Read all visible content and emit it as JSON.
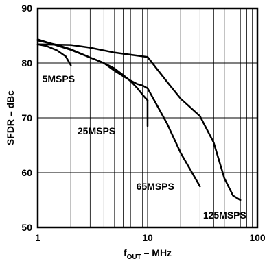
{
  "chart_data": {
    "type": "line",
    "title": "",
    "xlabel": {
      "main": "f",
      "sub": "OUT",
      "rest": " – MHz"
    },
    "ylabel": "SFDR – dBc",
    "x_scale": "log",
    "xlim": [
      1,
      100
    ],
    "ylim": [
      50,
      90
    ],
    "grid": true,
    "x_tick_labels": [
      {
        "value": 1,
        "label": "1"
      },
      {
        "value": 10,
        "label": "10"
      },
      {
        "value": 100,
        "label": "100"
      }
    ],
    "y_tick_labels": [
      {
        "value": 90,
        "label": "90"
      },
      {
        "value": 80,
        "label": "80"
      },
      {
        "value": 70,
        "label": "70"
      },
      {
        "value": 60,
        "label": "60"
      },
      {
        "value": 50,
        "label": "50"
      }
    ],
    "series": [
      {
        "name": "5MSPS",
        "x": [
          1,
          1.2,
          1.5,
          1.8,
          2
        ],
        "y": [
          83.4,
          83.1,
          82.3,
          81.2,
          79.6
        ]
      },
      {
        "name": "25MSPS",
        "x": [
          1,
          1.5,
          2,
          3,
          4,
          5,
          6,
          7,
          8,
          9,
          10
        ],
        "y": [
          84.1,
          83.3,
          82.5,
          81.0,
          80.0,
          79.0,
          77.8,
          76.7,
          75.5,
          74.2,
          73.2
        ]
      },
      {
        "name": "65MSPS",
        "x": [
          1,
          2,
          3,
          4,
          5,
          6,
          7,
          8,
          9,
          10
        ],
        "y": [
          84.3,
          82.4,
          81.0,
          80.0,
          78.6,
          77.6,
          76.8,
          76.2,
          75.9,
          75.4
        ]
      },
      {
        "name": "125MSPS",
        "x": [
          1,
          2,
          3,
          5,
          10,
          15,
          20,
          30,
          40,
          50,
          60,
          70
        ],
        "y": [
          83.4,
          83.3,
          82.8,
          81.9,
          81.1,
          76.6,
          73.5,
          70.3,
          65.5,
          59.0,
          55.8,
          55.0
        ]
      }
    ],
    "extra_segments": [
      {
        "series": "25MSPS",
        "x": [
          10,
          10
        ],
        "y": [
          73.2,
          68.5
        ]
      },
      {
        "series": "65MSPS",
        "x": [
          10,
          15,
          20,
          30
        ],
        "y": [
          75.4,
          69.0,
          63.6,
          57.5
        ]
      }
    ],
    "annotations": [
      {
        "series": "5MSPS",
        "text": "5MSPS",
        "at_x": 1.1,
        "at_y": 76.5
      },
      {
        "series": "25MSPS",
        "text": "25MSPS",
        "at_x": 2.3,
        "at_y": 67.0
      },
      {
        "series": "65MSPS",
        "text": "65MSPS",
        "at_x": 7.9,
        "at_y": 56.9
      },
      {
        "series": "125MSPS",
        "text": "125MSPS",
        "at_x": 32,
        "at_y": 51.6
      }
    ]
  }
}
